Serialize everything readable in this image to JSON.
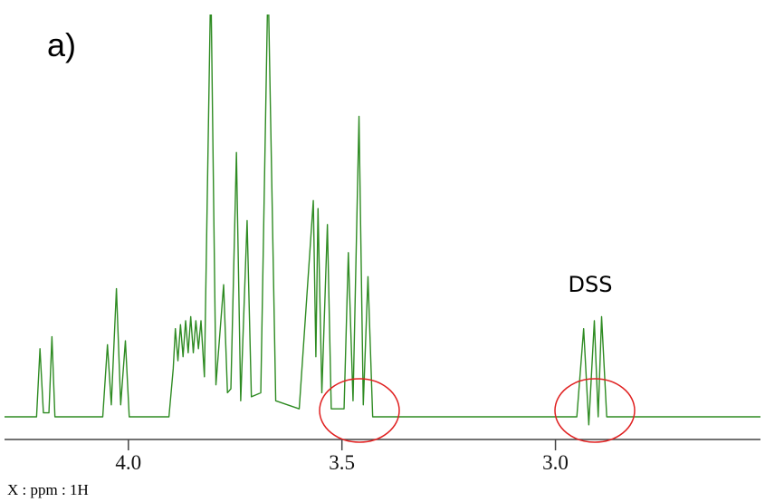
{
  "chart_data": {
    "type": "line",
    "panel_label": "a)",
    "annotation": "DSS",
    "xlabel": "X : ppm : 1H",
    "color": "#2e8b22",
    "xlim": [
      4.29,
      2.52
    ],
    "ylim": [
      0,
      100
    ],
    "xticks": [
      {
        "value": 4,
        "label": "4.0"
      },
      {
        "value": 3.5,
        "label": "3.5"
      },
      {
        "value": 3,
        "label": "3.0"
      }
    ],
    "x": [
      4.29,
      4.215,
      4.207,
      4.199,
      4.186,
      4.179,
      4.172,
      4.06,
      4.049,
      4.04,
      4.028,
      4.018,
      4.007,
      3.998,
      3.905,
      3.895,
      3.89,
      3.884,
      3.878,
      3.872,
      3.866,
      3.86,
      3.854,
      3.848,
      3.842,
      3.836,
      3.83,
      3.822,
      3.807,
      3.795,
      3.777,
      3.768,
      3.76,
      3.747,
      3.737,
      3.722,
      3.712,
      3.69,
      3.673,
      3.655,
      3.6,
      3.567,
      3.561,
      3.556,
      3.547,
      3.534,
      3.525,
      3.495,
      3.485,
      3.474,
      3.46,
      3.45,
      3.439,
      3.428,
      2.95,
      2.934,
      2.922,
      2.909,
      2.9,
      2.892,
      2.88,
      2.52
    ],
    "values": [
      0,
      0,
      17,
      1,
      1,
      20,
      0,
      0,
      18,
      3,
      32,
      3,
      19,
      0,
      0,
      12,
      22,
      14,
      23,
      15,
      24,
      16,
      25,
      16,
      24,
      17,
      24,
      10,
      110,
      8,
      33,
      6,
      7,
      66,
      4,
      49,
      5,
      6,
      110,
      4,
      2,
      54,
      15,
      52,
      6,
      48,
      2,
      2,
      41,
      4,
      75,
      3,
      35,
      0,
      0,
      22,
      -2,
      24,
      0,
      25,
      0,
      0
    ]
  }
}
